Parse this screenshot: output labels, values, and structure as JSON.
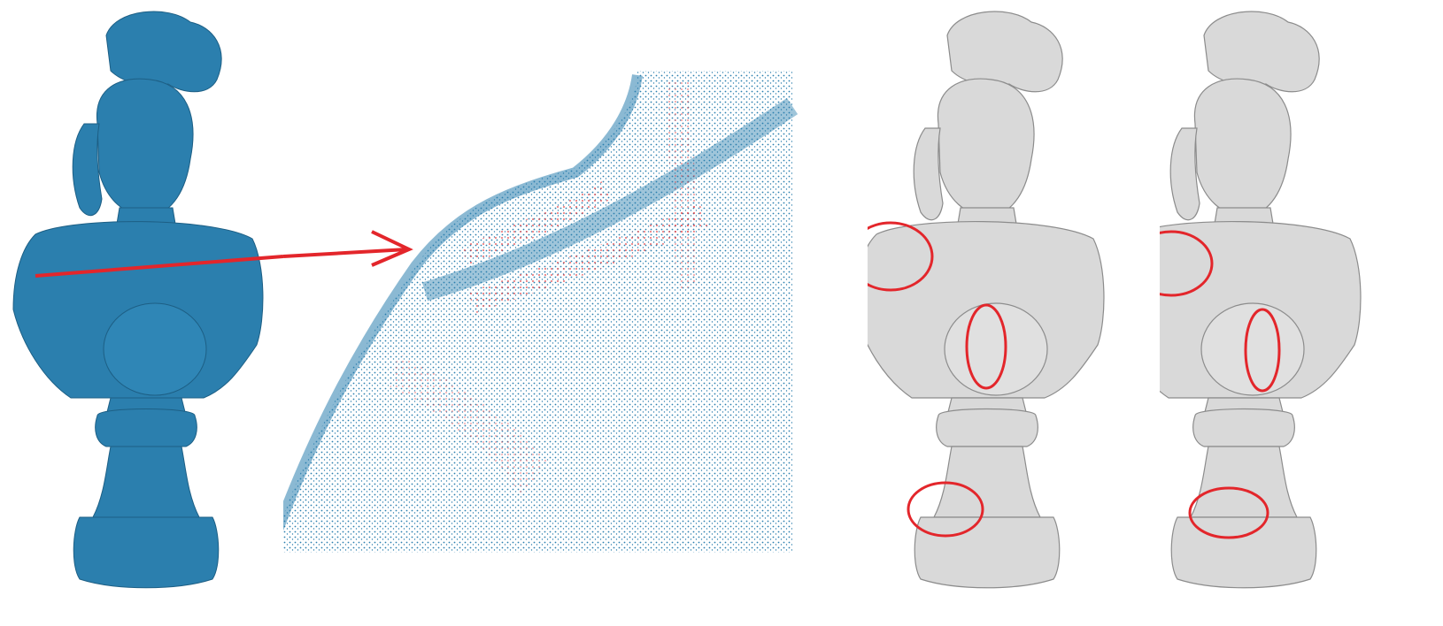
{
  "figure": {
    "panels": [
      {
        "id": "bust-point-cloud",
        "render": "point-cloud"
      },
      {
        "id": "zoomed-point-cloud-detail",
        "render": "point-cloud-zoom"
      },
      {
        "id": "mesh-result-a",
        "render": "mesh"
      },
      {
        "id": "mesh-result-b",
        "render": "mesh"
      }
    ],
    "colors": {
      "point_cloud": "#2b7fae",
      "point_cloud_dark": "#1d5f85",
      "outlier_points": "#e3262b",
      "highlight": "#e3262b",
      "mesh_light": "#d9d9d9",
      "mesh_shadow": "#8c8c8c"
    },
    "annotations": {
      "callout_arrow": "arrow-icon",
      "highlight_regions_per_mesh": 3
    }
  }
}
